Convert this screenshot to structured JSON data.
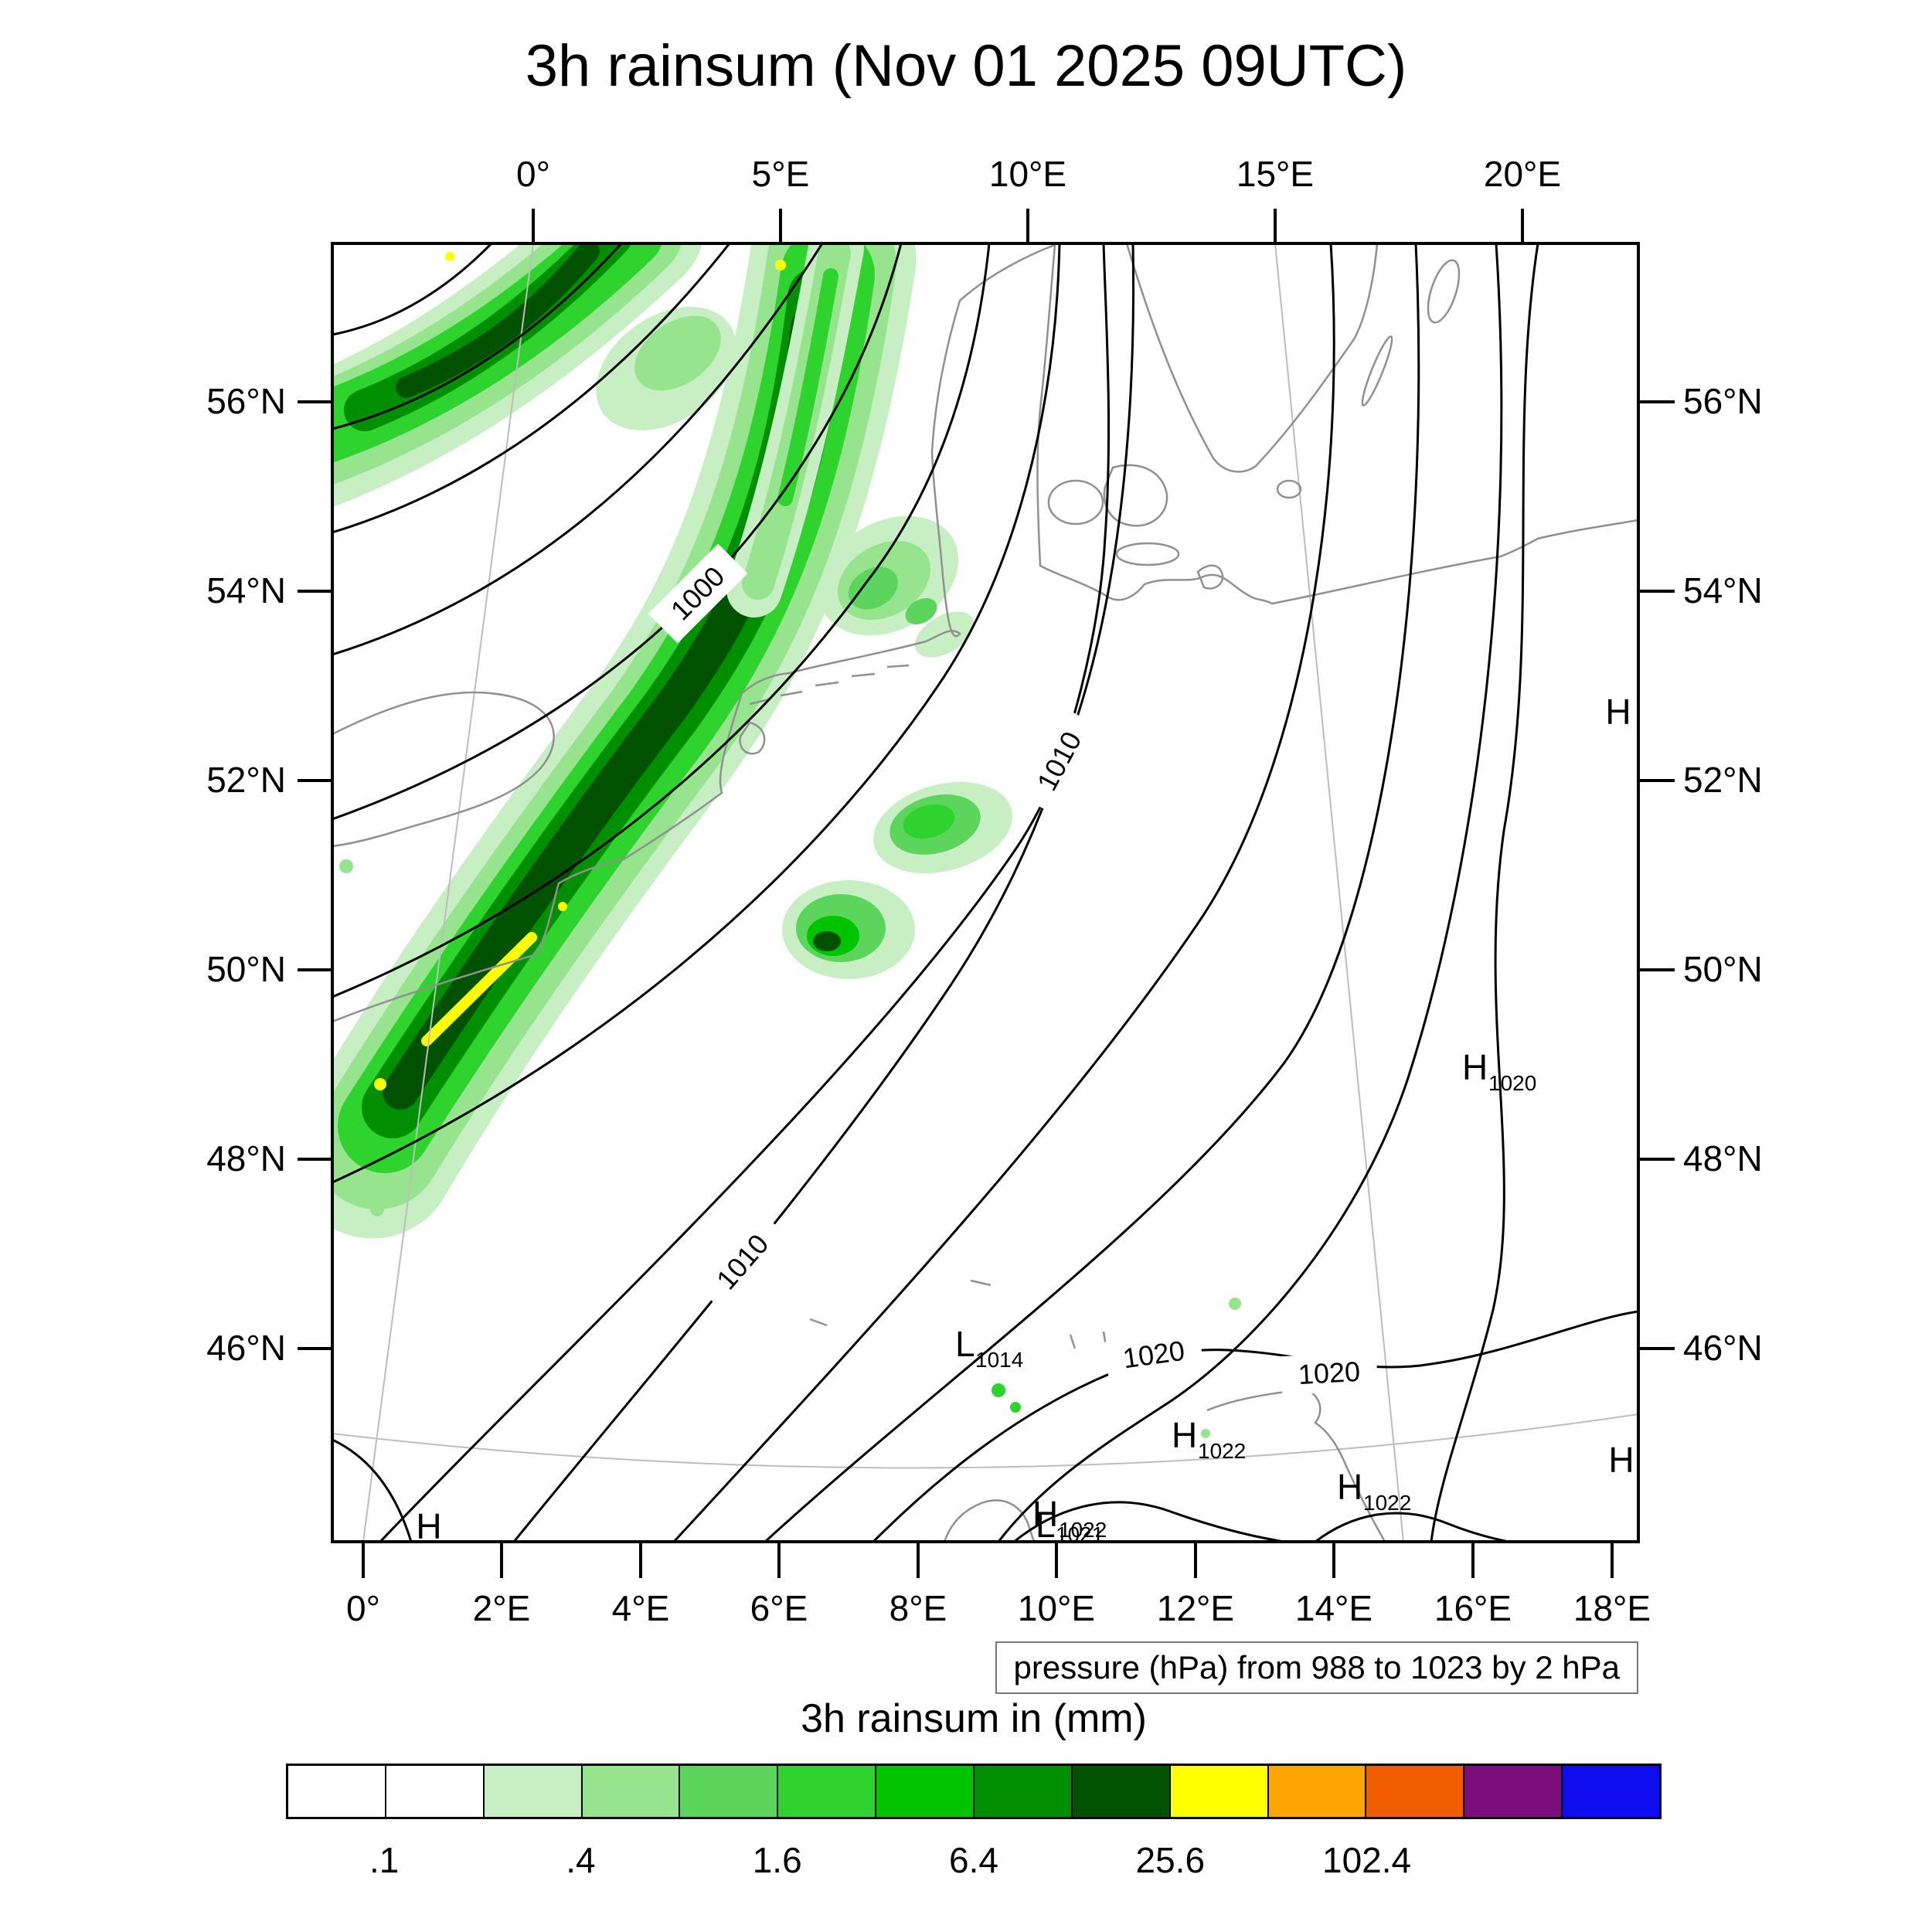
{
  "title": "3h rainsum (Nov 01 2025 09UTC)",
  "axes": {
    "top": [
      "0°",
      "5°E",
      "10°E",
      "15°E",
      "20°E"
    ],
    "bottom": [
      "0°",
      "2°E",
      "4°E",
      "6°E",
      "8°E",
      "10°E",
      "12°E",
      "14°E",
      "16°E",
      "18°E"
    ],
    "left": [
      "56°N",
      "54°N",
      "52°N",
      "50°N",
      "48°N",
      "46°N"
    ],
    "right": [
      "56°N",
      "54°N",
      "52°N",
      "50°N",
      "48°N",
      "46°N"
    ]
  },
  "pressure_caption": "pressure (hPa) from 988 to 1023 by 2 hPa",
  "colorbar": {
    "title": "3h rainsum in (mm)",
    "tick_labels": [
      ".1",
      ".4",
      "1.6",
      "6.4",
      "25.6",
      "102.4"
    ],
    "colors": [
      "#ffffff",
      "#ffffff",
      "#c8efc4",
      "#96e48e",
      "#5cd55c",
      "#2ed32e",
      "#00c400",
      "#008f00",
      "#005200",
      "#ffff00",
      "#ffa500",
      "#f25c00",
      "#7d0c7d",
      "#0d0dee"
    ]
  },
  "contour_labels": [
    {
      "text": "1000"
    },
    {
      "text": "1010"
    },
    {
      "text": "1010"
    },
    {
      "text": "1020"
    },
    {
      "text": "1020"
    }
  ],
  "pressure_centers": [
    {
      "letter": "H",
      "value": ""
    },
    {
      "letter": "H",
      "value": "1020"
    },
    {
      "letter": "L",
      "value": "1014"
    },
    {
      "letter": "H",
      "value": "1022"
    },
    {
      "letter": "H",
      "value": "1022"
    },
    {
      "letter": "H",
      "value": "1022"
    },
    {
      "letter": "L",
      "value": "1021"
    },
    {
      "letter": "H",
      "value": ""
    },
    {
      "letter": "H",
      "value": ""
    }
  ],
  "map_colors": {
    "isobar": "#000000",
    "coastline": "#909090",
    "graticule": "#bdbdbd",
    "frame": "#000000"
  }
}
